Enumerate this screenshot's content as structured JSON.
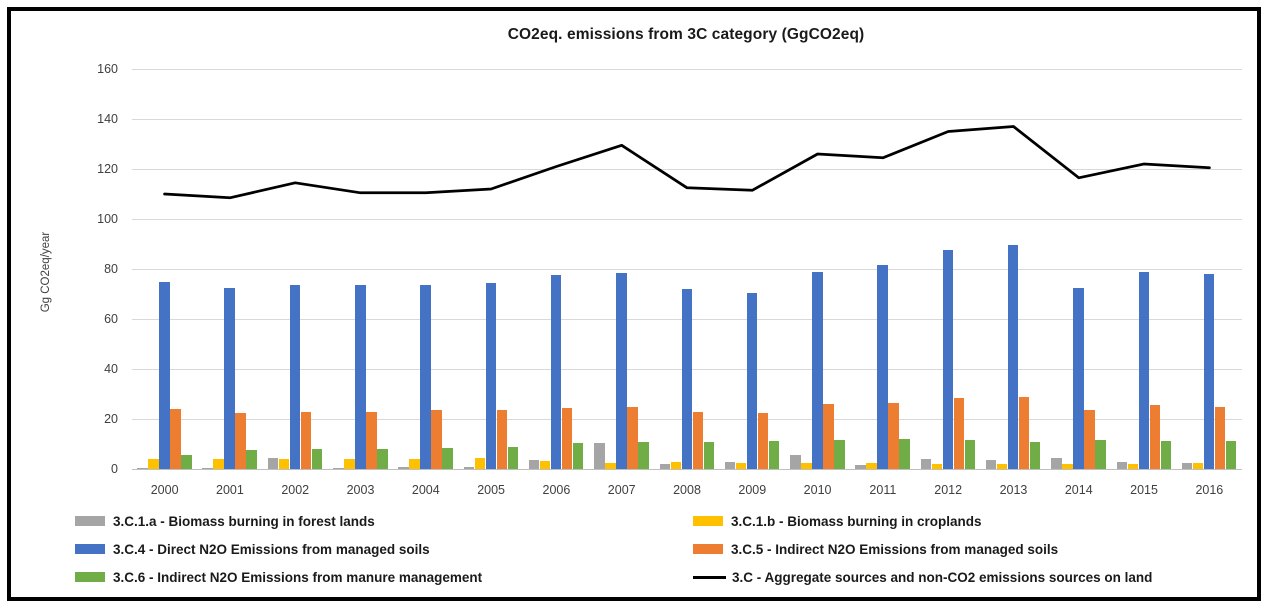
{
  "chart_data": {
    "type": "bar",
    "subtype": "grouped-bars-with-line-overlay",
    "title": "CO2eq. emissions from 3C category (GgCO2eq)",
    "xlabel": "",
    "ylabel": "Gg CO2eq/year",
    "ylim": [
      0,
      160
    ],
    "y_ticks": [
      0,
      20,
      40,
      60,
      80,
      100,
      120,
      140,
      160
    ],
    "grid": true,
    "legend_position": "bottom-two-columns",
    "categories": [
      "2000",
      "2001",
      "2002",
      "2003",
      "2004",
      "2005",
      "2006",
      "2007",
      "2008",
      "2009",
      "2010",
      "2011",
      "2012",
      "2013",
      "2014",
      "2015",
      "2016"
    ],
    "series": [
      {
        "name": "3.C.1.a - Biomass burning in forest lands",
        "type": "bar",
        "color": "#a5a5a5",
        "values": [
          0.3,
          0.3,
          4.5,
          0.4,
          0.8,
          0.8,
          3.7,
          10.5,
          2.0,
          3.0,
          5.5,
          1.5,
          4.0,
          3.8,
          4.3,
          2.8,
          2.5
        ]
      },
      {
        "name": "3.C.1.b - Biomass burning in croplands",
        "type": "bar",
        "color": "#ffc000",
        "values": [
          4.0,
          4.0,
          4.2,
          4.0,
          4.0,
          4.3,
          3.4,
          2.5,
          3.0,
          2.4,
          2.3,
          2.5,
          2.0,
          2.0,
          2.1,
          2.1,
          2.3
        ]
      },
      {
        "name": "3.C.4 - Direct N2O Emissions from managed soils",
        "type": "bar",
        "color": "#4472c4",
        "values": [
          75,
          72.5,
          73.5,
          73.5,
          73.5,
          74.5,
          77.5,
          78.5,
          72,
          70.5,
          79,
          81.5,
          87.5,
          89.5,
          72.5,
          79,
          78
        ]
      },
      {
        "name": "3.C.5 - Indirect N2O Emissions from managed soils",
        "type": "bar",
        "color": "#ed7d31",
        "values": [
          24,
          22.5,
          23,
          23,
          23.5,
          23.5,
          24.5,
          25,
          23,
          22.5,
          26,
          26.5,
          28.5,
          29,
          23.5,
          25.5,
          25
        ]
      },
      {
        "name": "3.C.6 - Indirect N2O Emissions from manure management",
        "type": "bar",
        "color": "#70ad47",
        "values": [
          5.5,
          7.5,
          8,
          8,
          8.3,
          8.8,
          10.5,
          11,
          11,
          11.2,
          11.8,
          12,
          11.5,
          11,
          11.5,
          11.2,
          11.3
        ]
      },
      {
        "name": "3.C - Aggregate sources and non-CO2 emissions sources on land",
        "type": "line",
        "color": "#000000",
        "values": [
          110,
          108.5,
          114.5,
          110.5,
          110.5,
          112,
          121,
          129.5,
          112.5,
          111.5,
          126,
          124.5,
          135,
          137,
          116.5,
          122,
          120.5
        ]
      }
    ],
    "legend_entries": [
      {
        "label": "3.C.1.a - Biomass burning in forest lands",
        "marker": "rect",
        "color": "#a5a5a5"
      },
      {
        "label": "3.C.1.b - Biomass burning in croplands",
        "marker": "rect",
        "color": "#ffc000"
      },
      {
        "label": "3.C.4 - Direct N2O Emissions from managed soils",
        "marker": "rect",
        "color": "#4472c4"
      },
      {
        "label": "3.C.5 - Indirect N2O Emissions from managed soils",
        "marker": "rect",
        "color": "#ed7d31"
      },
      {
        "label": "3.C.6 - Indirect N2O Emissions from manure management",
        "marker": "rect",
        "color": "#70ad47"
      },
      {
        "label": "3.C - Aggregate sources and non-CO2 emissions sources on land",
        "marker": "line",
        "color": "#000000"
      }
    ],
    "colors": {
      "gridline": "#d9d9d9",
      "axis_text": "#404040",
      "title_text": "#1a1a1a",
      "frame_border": "#000000"
    }
  }
}
